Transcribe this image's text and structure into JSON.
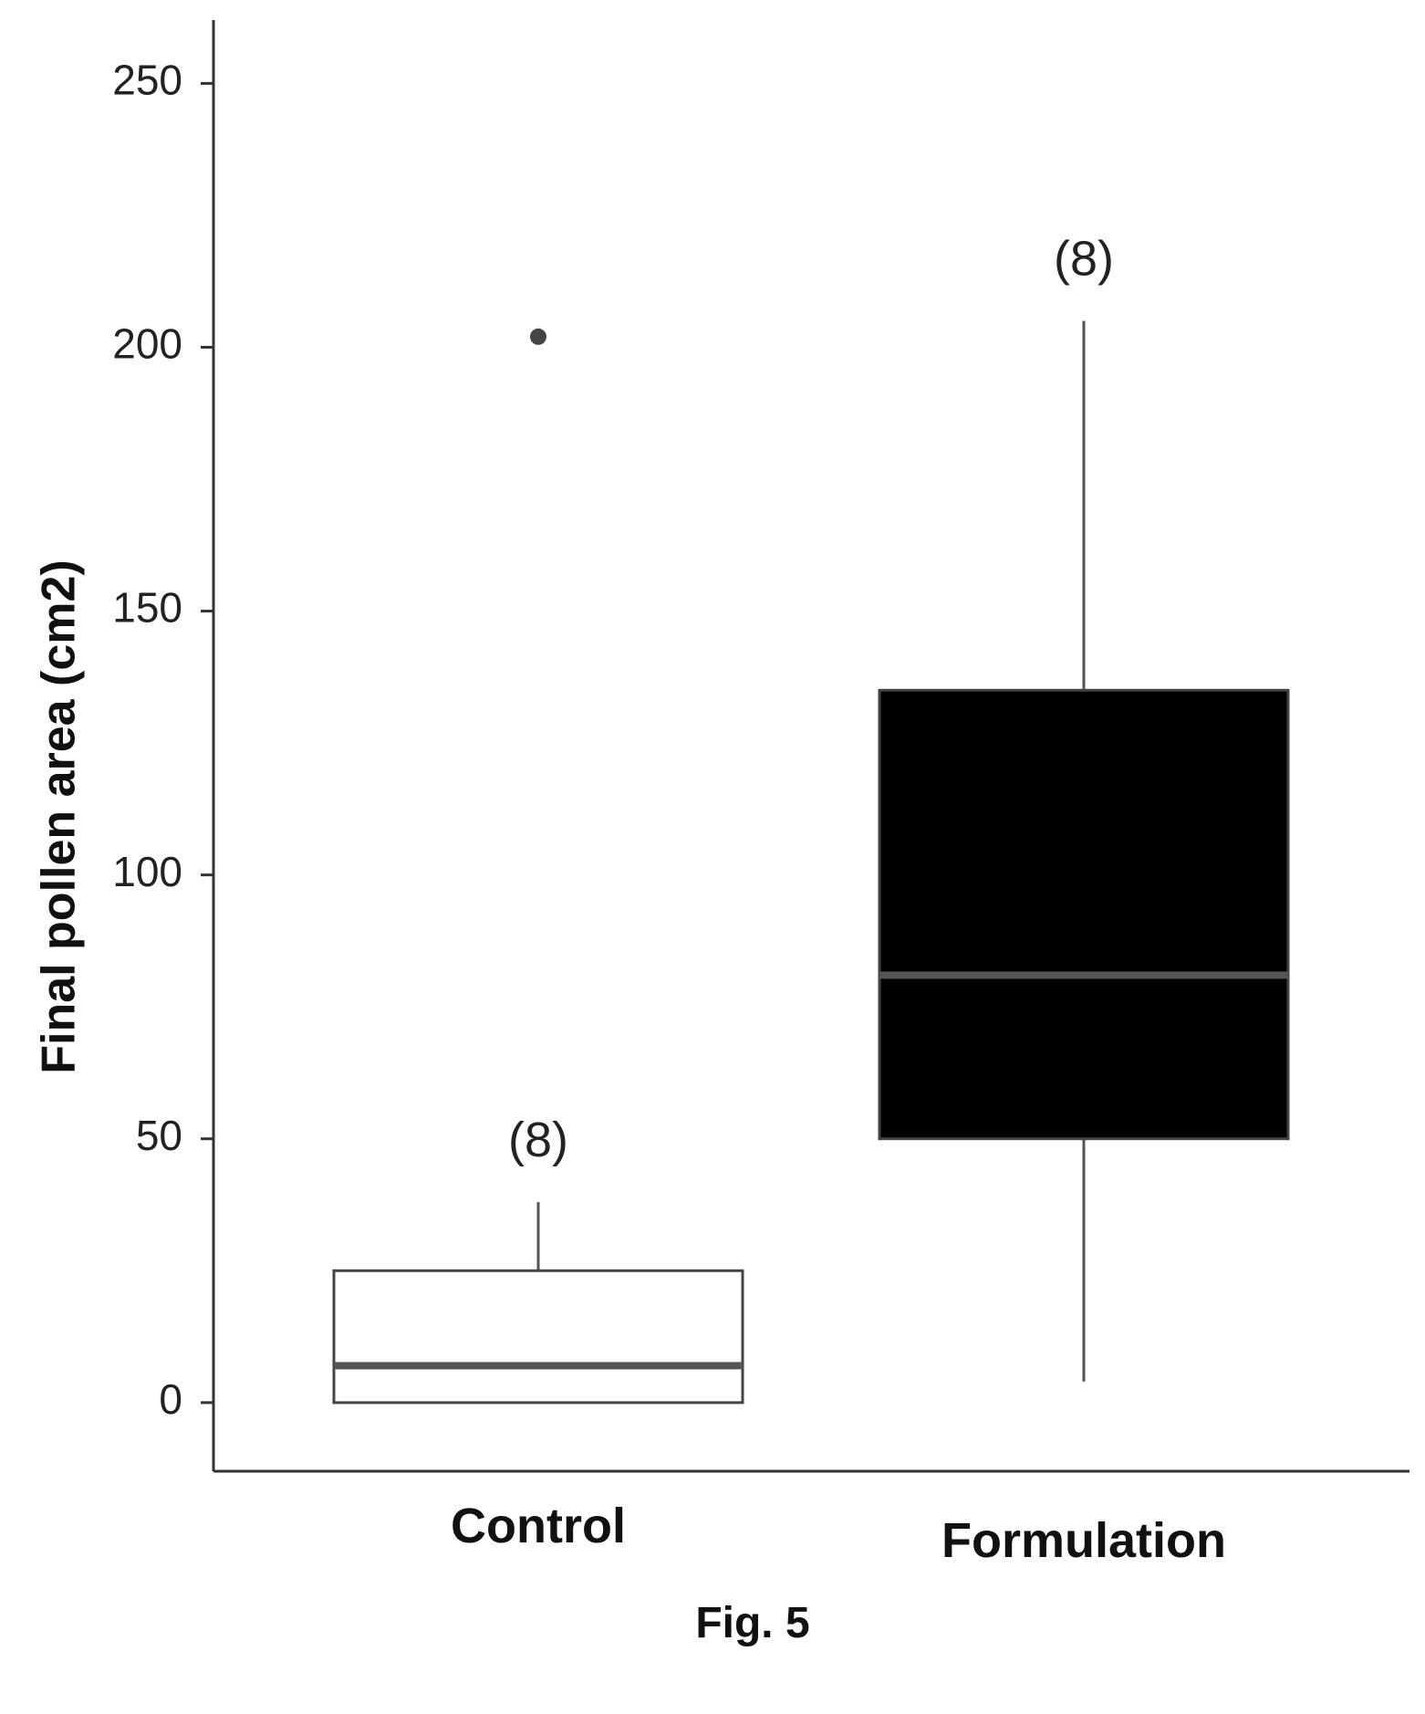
{
  "chart_data": {
    "type": "box",
    "ylabel": "Final pollen area (cm2)",
    "xlabel": "",
    "ylim": [
      -13,
      262
    ],
    "yticks": [
      0,
      50,
      100,
      150,
      200,
      250
    ],
    "categories": [
      "Control",
      "Formulation"
    ],
    "boxes": [
      {
        "name": "Control",
        "n_label": "(8)",
        "whisker_low": 0,
        "q1": 0,
        "median": 7,
        "q3": 25,
        "whisker_high": 38,
        "outliers": [
          202
        ],
        "fill": "#ffffff"
      },
      {
        "name": "Formulation",
        "n_label": "(8)",
        "whisker_low": 4,
        "q1": 50,
        "median": 81,
        "q3": 135,
        "whisker_high": 205,
        "outliers": [],
        "fill": "#000000"
      }
    ],
    "grid": false,
    "legend": "none"
  },
  "caption": "Fig. 5"
}
